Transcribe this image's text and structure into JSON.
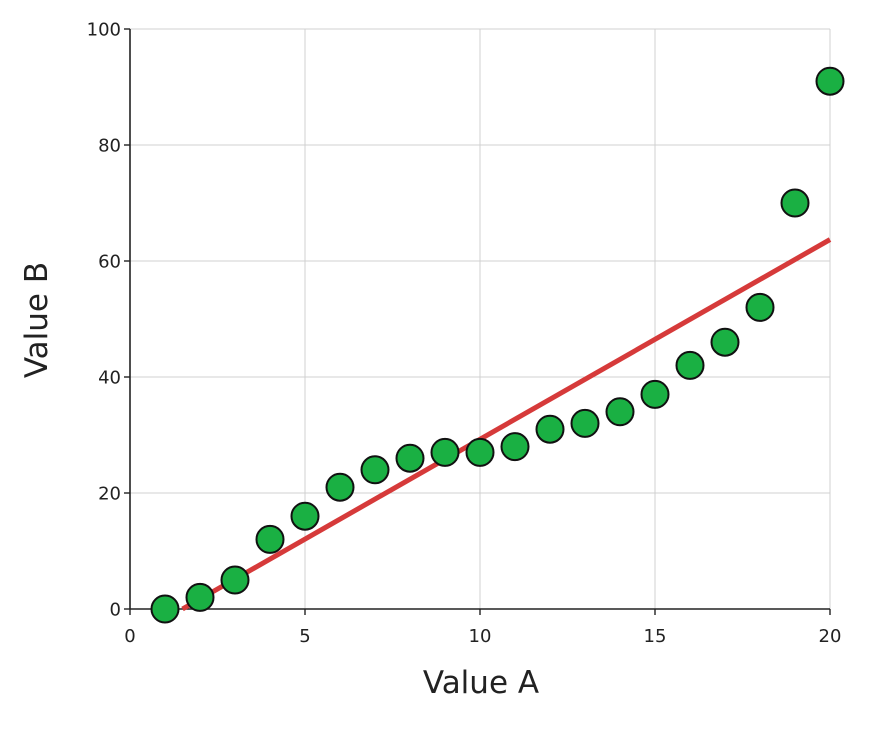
{
  "chart_data": {
    "type": "scatter",
    "title": "",
    "xlabel": "Value A",
    "ylabel": "Value B",
    "xlim": [
      0,
      20
    ],
    "ylim": [
      0,
      100
    ],
    "x_ticks": [
      0,
      5,
      10,
      15,
      20
    ],
    "y_ticks": [
      0,
      20,
      40,
      60,
      80,
      100
    ],
    "x_tick_labels": [
      "0",
      "5",
      "10",
      "15",
      "20"
    ],
    "y_tick_labels": [
      "0",
      "20",
      "40",
      "60",
      "80",
      "100"
    ],
    "grid": true,
    "series": [
      {
        "type": "scatter",
        "color": "#1ab043",
        "edge_color": "#111111",
        "x": [
          1,
          2,
          3,
          4,
          5,
          6,
          7,
          8,
          9,
          10,
          11,
          12,
          13,
          14,
          15,
          16,
          17,
          18,
          19,
          20
        ],
        "y": [
          0,
          2,
          5,
          12,
          16,
          21,
          24,
          26,
          27,
          27,
          28,
          31,
          32,
          34,
          37,
          42,
          46,
          52,
          70,
          91
        ]
      },
      {
        "type": "line",
        "color": "#d63a3a",
        "x": [
          1.5,
          20
        ],
        "y": [
          0,
          63.7
        ]
      }
    ]
  }
}
